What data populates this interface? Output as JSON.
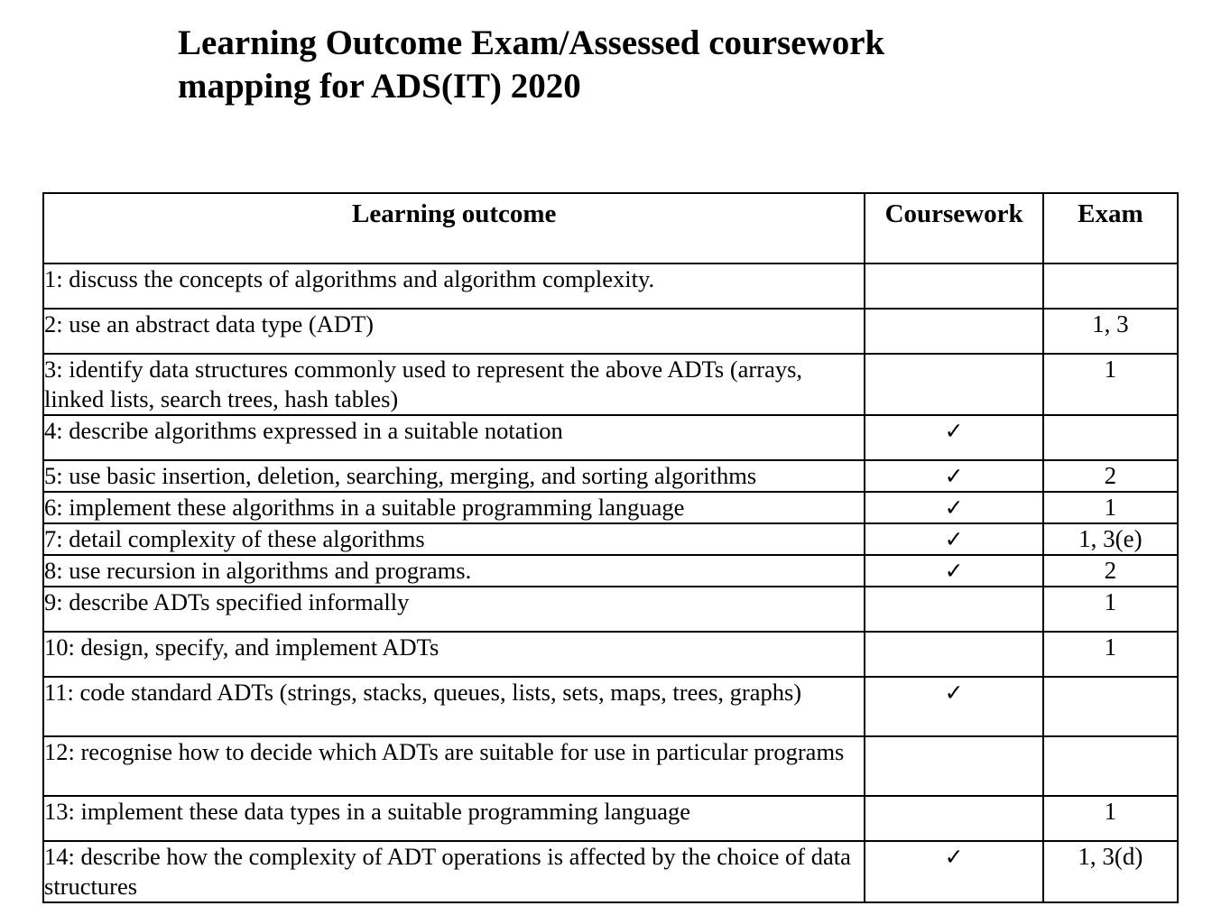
{
  "title_line1": "Learning Outcome Exam/Assessed coursework",
  "title_line2": "mapping for ADS(IT) 2020",
  "headers": {
    "outcome": "Learning outcome",
    "coursework": "Coursework",
    "exam": "Exam"
  },
  "rows": [
    {
      "outcome": "1: discuss the concepts of algorithms and algorithm complexity.",
      "coursework": "",
      "exam": ""
    },
    {
      "outcome": "2: use an abstract data type (ADT)",
      "coursework": "",
      "exam": "1, 3"
    },
    {
      "outcome": "3: identify data structures commonly used to represent the above ADTs (arrays, linked lists, search trees, hash tables)",
      "coursework": "",
      "exam": "1"
    },
    {
      "outcome": "4: describe algorithms expressed in a suitable notation",
      "coursework": "✓",
      "exam": ""
    },
    {
      "outcome": "5: use basic insertion, deletion, searching, merging, and sorting algorithms",
      "coursework": "✓",
      "exam": "2"
    },
    {
      "outcome": "6: implement these algorithms in a suitable programming language",
      "coursework": "✓",
      "exam": "1"
    },
    {
      "outcome": "7: detail complexity of these algorithms",
      "coursework": "✓",
      "exam": "1, 3(e)"
    },
    {
      "outcome": "8: use recursion in algorithms and programs.",
      "coursework": "✓",
      "exam": "2"
    },
    {
      "outcome": "9: describe ADTs specified informally",
      "coursework": "",
      "exam": "1"
    },
    {
      "outcome": "10: design, specify, and implement ADTs",
      "coursework": "",
      "exam": "1"
    },
    {
      "outcome": "11: code standard ADTs (strings, stacks, queues, lists, sets, maps, trees, graphs)",
      "coursework": "✓",
      "exam": ""
    },
    {
      "outcome": "12: recognise how to decide which ADTs are suitable for use in particular programs",
      "coursework": "",
      "exam": ""
    },
    {
      "outcome": "13: implement these data types in a suitable programming language",
      "coursework": "",
      "exam": "1"
    },
    {
      "outcome": "14: describe how the complexity of ADT operations is affected by the choice of data structures",
      "coursework": "✓",
      "exam": "1, 3(d)"
    }
  ]
}
